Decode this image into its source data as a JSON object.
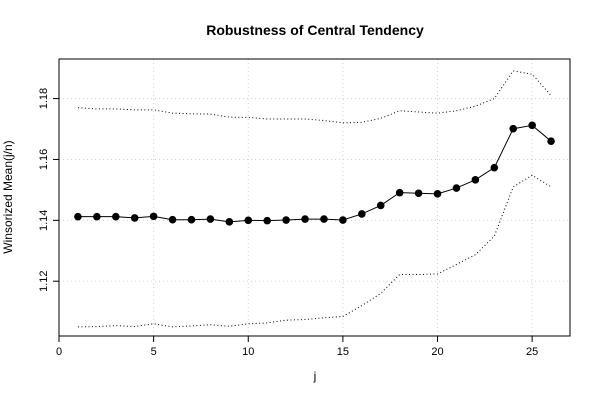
{
  "chart_data": {
    "type": "line",
    "title": "Robustness of Central Tendency",
    "xlabel": "j",
    "ylabel": "Winsorized Mean(j/n)",
    "xlim": [
      0,
      27
    ],
    "ylim": [
      1.102,
      1.193
    ],
    "x_ticks": [
      0,
      5,
      10,
      15,
      20,
      25
    ],
    "x_tick_labels": [
      "0",
      "5",
      "10",
      "15",
      "20",
      "25"
    ],
    "y_ticks": [
      1.12,
      1.14,
      1.16,
      1.18
    ],
    "y_tick_labels": [
      "1.12",
      "1.14",
      "1.16",
      "1.18"
    ],
    "grid": true,
    "x": [
      1,
      2,
      3,
      4,
      5,
      6,
      7,
      8,
      9,
      10,
      11,
      12,
      13,
      14,
      15,
      16,
      17,
      18,
      19,
      20,
      21,
      22,
      23,
      24,
      25,
      26
    ],
    "series": [
      {
        "style": "points-lines",
        "color": "#000000",
        "values": [
          1.1412,
          1.1412,
          1.1412,
          1.1408,
          1.1413,
          1.1402,
          1.1402,
          1.1404,
          1.1395,
          1.14,
          1.1399,
          1.1401,
          1.1404,
          1.1404,
          1.1401,
          1.1421,
          1.1449,
          1.1491,
          1.1489,
          1.1487,
          1.1506,
          1.1533,
          1.1573,
          1.1701,
          1.1712,
          1.166
        ]
      },
      {
        "style": "dotted",
        "color": "#000000",
        "values": [
          1.177,
          1.1766,
          1.1766,
          1.1763,
          1.1763,
          1.1752,
          1.175,
          1.1749,
          1.1739,
          1.1738,
          1.1733,
          1.1733,
          1.1733,
          1.1728,
          1.172,
          1.1722,
          1.1735,
          1.176,
          1.1756,
          1.1752,
          1.176,
          1.1775,
          1.18,
          1.1891,
          1.188,
          1.181
        ]
      },
      {
        "style": "dotted",
        "color": "#000000",
        "values": [
          1.105,
          1.1051,
          1.1054,
          1.1051,
          1.106,
          1.105,
          1.1053,
          1.1057,
          1.1052,
          1.106,
          1.1063,
          1.1072,
          1.1074,
          1.108,
          1.1084,
          1.112,
          1.116,
          1.1222,
          1.1222,
          1.1224,
          1.1255,
          1.1287,
          1.1348,
          1.151,
          1.1548,
          1.151
        ]
      }
    ]
  }
}
